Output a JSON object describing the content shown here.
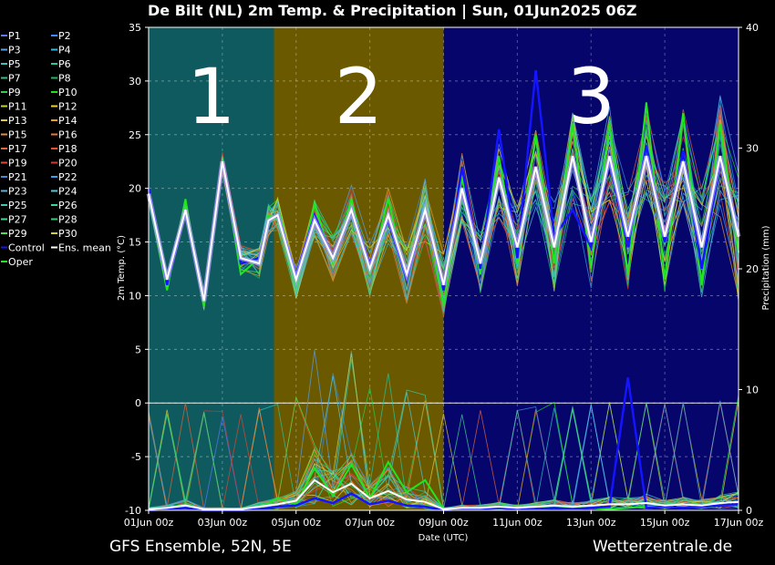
{
  "chart_data": {
    "type": "line",
    "title": "De Bilt  (NL)  2m Temp. & Precipitation | Sun, 01Jun2025 06Z",
    "footer_left": "GFS Ensemble, 52N, 5E",
    "footer_right": "Wetterzentrale.de",
    "xlabel": "Date (UTC)",
    "ylabel": "2m Temp. (°C)",
    "y2label": "Precipitation (mm)",
    "x_ticks": [
      "01Jun 00z",
      "03Jun 00z",
      "05Jun 00z",
      "07Jun 00z",
      "09Jun 00z",
      "11Jun 00z",
      "13Jun 00z",
      "15Jun 00z",
      "17Jun 00z"
    ],
    "x_range_days": [
      0,
      16
    ],
    "ylim": [
      -10,
      35
    ],
    "y_ticks": [
      "35",
      "30",
      "25",
      "20",
      "15",
      "10",
      "5",
      "0",
      "-5",
      "-10"
    ],
    "y2lim": [
      0,
      40
    ],
    "y2_ticks": [
      "40",
      "30",
      "20",
      "10",
      "0"
    ],
    "grid": true,
    "zones": [
      {
        "label": "1",
        "from_day": 0,
        "to_day": 3.4,
        "color": "#0f5a5e"
      },
      {
        "label": "2",
        "from_day": 3.4,
        "to_day": 8.0,
        "color": "#6b5900"
      },
      {
        "label": "3",
        "from_day": 8.0,
        "to_day": 16,
        "color": "#05056b"
      }
    ],
    "legend": {
      "placement": "left",
      "entries": [
        {
          "name": "P1",
          "color": "#5a78ff"
        },
        {
          "name": "P2",
          "color": "#3a8cff"
        },
        {
          "name": "P3",
          "color": "#5aa0e8"
        },
        {
          "name": "P4",
          "color": "#3cb4e0"
        },
        {
          "name": "P5",
          "color": "#2ec8c8"
        },
        {
          "name": "P6",
          "color": "#28c8a0"
        },
        {
          "name": "P7",
          "color": "#20c880"
        },
        {
          "name": "P8",
          "color": "#20b464"
        },
        {
          "name": "P9",
          "color": "#28d250"
        },
        {
          "name": "P10",
          "color": "#20e020"
        },
        {
          "name": "P11",
          "color": "#c8d228"
        },
        {
          "name": "P12",
          "color": "#e6d23c"
        },
        {
          "name": "P13",
          "color": "#e6c83c"
        },
        {
          "name": "P14",
          "color": "#e6a028"
        },
        {
          "name": "P15",
          "color": "#e68c3c"
        },
        {
          "name": "P16",
          "color": "#e6783c"
        },
        {
          "name": "P17",
          "color": "#e6643c"
        },
        {
          "name": "P18",
          "color": "#e65032"
        },
        {
          "name": "P19",
          "color": "#e64632"
        },
        {
          "name": "P20",
          "color": "#c83c3c"
        },
        {
          "name": "P21",
          "color": "#3c8cdc"
        },
        {
          "name": "P22",
          "color": "#3ca0e6"
        },
        {
          "name": "P23",
          "color": "#50b4e6"
        },
        {
          "name": "P24",
          "color": "#50c8dc"
        },
        {
          "name": "P25",
          "color": "#3cc8b4"
        },
        {
          "name": "P26",
          "color": "#3cd2a0"
        },
        {
          "name": "P27",
          "color": "#3cdc8c"
        },
        {
          "name": "P28",
          "color": "#3cc878"
        },
        {
          "name": "P29",
          "color": "#46e650"
        },
        {
          "name": "P30",
          "color": "#d2d23c"
        },
        {
          "name": "Control",
          "color": "#1414ff"
        },
        {
          "name": "Ens. mean",
          "color": "#ffffff"
        },
        {
          "name": "Oper",
          "color": "#20e620"
        }
      ]
    },
    "mean_temp": {
      "x": [
        0,
        0.5,
        1,
        1.5,
        2,
        2.5,
        3,
        3.25,
        3.5,
        4,
        4.5,
        5,
        5.5,
        6,
        6.5,
        7,
        7.5,
        8,
        8.5,
        9,
        9.5,
        10,
        10.5,
        11,
        11.5,
        12,
        12.5,
        13,
        13.5,
        14,
        14.5,
        15,
        15.5,
        16
      ],
      "y": [
        19.5,
        11.5,
        18,
        9.5,
        22.5,
        13.5,
        13,
        17,
        17.5,
        11.5,
        17,
        13.5,
        18,
        12.5,
        17.5,
        12,
        18,
        11,
        20,
        13,
        21,
        14.5,
        22,
        14.5,
        23,
        15,
        23,
        15.5,
        23,
        15.5,
        22.5,
        14.5,
        23,
        15.5
      ]
    },
    "oper_temp": {
      "x": [
        0,
        0.5,
        1,
        1.5,
        2,
        2.5,
        3,
        3.25,
        3.5,
        4,
        4.5,
        5,
        5.5,
        6,
        6.5,
        7,
        7.5,
        8,
        8.5,
        9,
        9.5,
        10,
        10.5,
        11,
        11.5,
        12,
        12.5,
        13,
        13.5,
        14,
        14.5,
        15,
        15.5,
        16
      ],
      "y": [
        19,
        10.5,
        19,
        9,
        22.5,
        12,
        13.5,
        17.5,
        17,
        11,
        18.5,
        13,
        19,
        12,
        19,
        11.5,
        18.5,
        9,
        21,
        12,
        23,
        13,
        25,
        13,
        26,
        12.5,
        26,
        12,
        28,
        11.5,
        27,
        11,
        26,
        14
      ]
    },
    "control_temp": {
      "x": [
        0,
        0.5,
        1,
        1.5,
        2,
        2.5,
        3,
        3.25,
        3.5,
        4,
        4.5,
        5,
        5.5,
        6,
        6.5,
        7,
        7.5,
        8,
        8.5,
        9,
        9.5,
        10,
        10.5,
        11,
        11.5,
        12,
        12.5,
        13,
        13.5,
        14,
        14.5,
        15,
        15.5,
        16
      ],
      "y": [
        20,
        11,
        18,
        9.5,
        22.5,
        13,
        13.5,
        17,
        17.5,
        12,
        17.5,
        13.5,
        18,
        13,
        17,
        11.5,
        18,
        10.5,
        22,
        12.5,
        25.5,
        13.5,
        31,
        15.5,
        18,
        14.5,
        22.5,
        14.5,
        24,
        15,
        23.5,
        12.5,
        22.5,
        16
      ]
    },
    "mean_precip_mm": {
      "x": [
        0,
        0.5,
        1,
        1.5,
        2,
        2.5,
        3,
        3.5,
        4,
        4.5,
        5,
        5.5,
        6,
        6.5,
        7,
        7.5,
        8,
        8.5,
        9,
        9.5,
        10,
        10.5,
        11,
        11.5,
        12,
        12.5,
        13,
        13.5,
        14,
        14.5,
        15,
        15.5,
        16
      ],
      "y": [
        0.1,
        0.2,
        0.4,
        0.1,
        0.1,
        0.1,
        0.3,
        0.5,
        0.8,
        2.5,
        1.5,
        2.2,
        1.0,
        1.6,
        0.9,
        0.7,
        0.1,
        0.2,
        0.2,
        0.3,
        0.2,
        0.3,
        0.4,
        0.3,
        0.4,
        0.5,
        0.5,
        0.6,
        0.4,
        0.5,
        0.4,
        0.6,
        0.7
      ]
    },
    "control_precip_mm": {
      "x": [
        0,
        0.5,
        1,
        1.5,
        2,
        2.5,
        3,
        3.5,
        4,
        4.5,
        5,
        5.5,
        6,
        6.5,
        7,
        7.5,
        8,
        8.5,
        9,
        9.5,
        10,
        10.5,
        11,
        11.5,
        12,
        12.5,
        13,
        13.5,
        14,
        14.5,
        15,
        15.5,
        16
      ],
      "y": [
        0,
        0.1,
        0.2,
        0,
        0,
        0,
        0.1,
        0.3,
        0.4,
        1.0,
        0.6,
        1.4,
        0.5,
        0.8,
        0.4,
        0.3,
        0,
        0.1,
        0.1,
        0.2,
        0.1,
        0.1,
        0.2,
        0.1,
        0.2,
        0.3,
        11,
        0.2,
        0.3,
        0.2,
        0.3,
        0.4,
        0.5
      ]
    },
    "oper_precip_mm": {
      "x": [
        0,
        0.5,
        1,
        1.5,
        2,
        2.5,
        3,
        3.5,
        4,
        4.5,
        5,
        5.5,
        6,
        6.5,
        7,
        7.5,
        8,
        8.5,
        9,
        9.5,
        10,
        10.5,
        11,
        11.5,
        12,
        12.5,
        13,
        13.5,
        14,
        14.5,
        15,
        15.5,
        16
      ],
      "y": [
        0,
        0.2,
        0.5,
        0,
        0,
        0,
        0.2,
        1.0,
        0.5,
        3.5,
        1.2,
        3.8,
        1.0,
        4.0,
        1.5,
        2.5,
        0.1,
        0.1,
        0.2,
        0.1,
        0.2,
        0.1,
        0.3,
        0.2,
        0.2,
        0.1,
        0.2,
        0.3,
        0.2,
        0.3,
        0.2,
        0.4,
        0.4
      ]
    }
  }
}
